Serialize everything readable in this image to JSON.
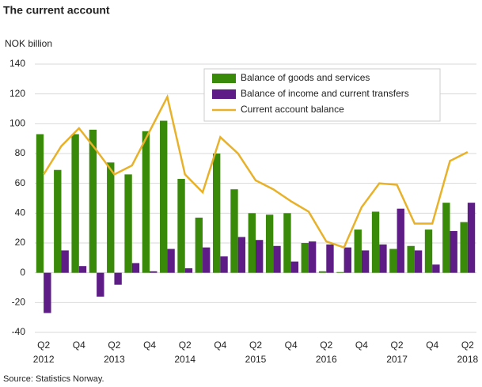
{
  "chart_data": {
    "type": "bar_line",
    "title": "The current account",
    "y_axis_label": "NOK billion",
    "source": "Source: Statistics Norway.",
    "categories": [
      "Q2",
      null,
      "Q4",
      null,
      "Q2",
      null,
      "Q4",
      null,
      "Q2",
      null,
      "Q4",
      null,
      "Q2",
      null,
      "Q4",
      null,
      "Q2",
      null,
      "Q4",
      null,
      "Q2",
      null,
      "Q4",
      null,
      "Q2"
    ],
    "category_years": [
      "2012",
      null,
      null,
      null,
      "2013",
      null,
      null,
      null,
      "2014",
      null,
      null,
      null,
      "2015",
      null,
      null,
      null,
      "2016",
      null,
      null,
      null,
      "2017",
      null,
      null,
      null,
      "2018"
    ],
    "series": [
      {
        "name": "Balance of goods and services",
        "color": "#3a8a0a",
        "kind": "bar",
        "values": [
          93,
          69,
          93,
          96,
          74,
          66,
          95,
          102,
          63,
          37,
          80,
          56,
          40,
          39,
          40,
          20,
          1,
          0.5,
          29,
          41,
          16,
          18,
          29,
          47,
          34
        ]
      },
      {
        "name": "Balance of income and current transfers",
        "color": "#5e1d86",
        "kind": "bar",
        "values": [
          -27,
          15,
          4.5,
          -16,
          -8,
          6.5,
          1,
          16,
          3,
          17,
          11,
          24,
          22,
          18,
          7.5,
          21,
          19,
          17,
          15,
          19,
          43,
          15,
          5.5,
          28,
          47
        ]
      },
      {
        "name": "Current account balance",
        "color": "#e8b12a",
        "kind": "line",
        "values": [
          66,
          85,
          97,
          82,
          66,
          72,
          95,
          118,
          66,
          54,
          91,
          80,
          62,
          56,
          48,
          41,
          21,
          17,
          44,
          60,
          59,
          33,
          33,
          75,
          81
        ]
      }
    ],
    "ylim": [
      -40,
      140
    ],
    "yticks": [
      -40,
      -20,
      0,
      20,
      40,
      60,
      80,
      100,
      120,
      140
    ],
    "grid": true
  }
}
